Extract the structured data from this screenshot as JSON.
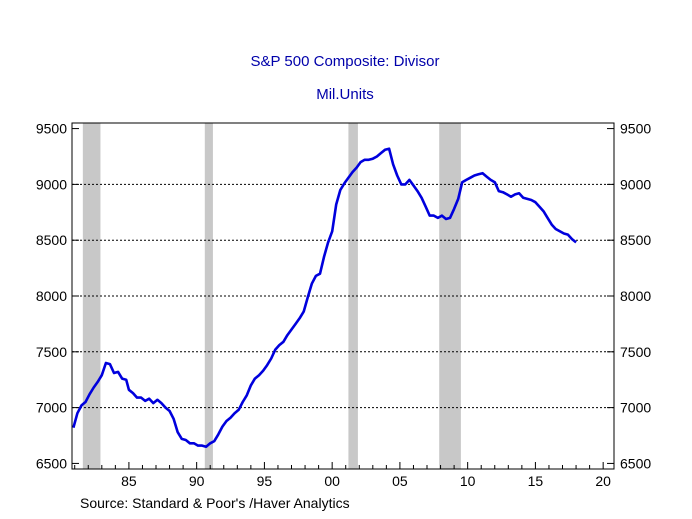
{
  "chart_data": {
    "type": "line",
    "title": "S&P 500 Composite: Divisor",
    "subtitle": "Mil.Units",
    "source": "Source:  Standard & Poor's /Haver Analytics",
    "xlim": [
      1980.8,
      2020.8
    ],
    "ylim": [
      6450,
      9550
    ],
    "x_ticks": [
      {
        "value": 1985,
        "label": "85"
      },
      {
        "value": 1990,
        "label": "90"
      },
      {
        "value": 1995,
        "label": "95"
      },
      {
        "value": 2000,
        "label": "00"
      },
      {
        "value": 2005,
        "label": "05"
      },
      {
        "value": 2010,
        "label": "10"
      },
      {
        "value": 2015,
        "label": "15"
      },
      {
        "value": 2020,
        "label": "20"
      }
    ],
    "y_ticks": [
      6500,
      7000,
      7500,
      8000,
      8500,
      9000,
      9500
    ],
    "y_tick_labels": [
      "6500",
      "7000",
      "7500",
      "8000",
      "8500",
      "9000",
      "9500"
    ],
    "gridlines": [
      7000,
      7500,
      8000,
      8500,
      9000
    ],
    "recessions": [
      [
        1981.6,
        1982.9
      ],
      [
        1990.6,
        1991.2
      ],
      [
        2001.2,
        2001.9
      ],
      [
        2007.9,
        2009.5
      ]
    ],
    "colors": {
      "line": "#0000dd",
      "recession": "#c8c8c8",
      "title": "#0000aa",
      "grid": "#000000"
    },
    "series": [
      {
        "x": [
          1980.9,
          1981.2,
          1981.5,
          1981.8,
          1982.1,
          1982.4,
          1982.7,
          1983.0,
          1983.3,
          1983.6,
          1983.9,
          1984.2,
          1984.5,
          1984.8,
          1985.0,
          1985.3,
          1985.6,
          1985.9,
          1986.2,
          1986.5,
          1986.8,
          1987.1,
          1987.4,
          1987.7,
          1988.0,
          1988.3,
          1988.6,
          1988.9,
          1989.2,
          1989.5,
          1989.8,
          1990.1,
          1990.4,
          1990.7,
          1991.0,
          1991.3,
          1991.6,
          1991.9,
          1992.2,
          1992.5,
          1992.8,
          1993.1,
          1993.4,
          1993.7,
          1994.0,
          1994.3,
          1994.6,
          1994.9,
          1995.2,
          1995.5,
          1995.8,
          1996.1,
          1996.4,
          1996.7,
          1997.0,
          1997.3,
          1997.6,
          1997.9,
          1998.2,
          1998.5,
          1998.8,
          1999.1,
          1999.4,
          1999.7,
          2000.0,
          2000.3,
          2000.6,
          2000.9,
          2001.2,
          2001.5,
          2001.8,
          2002.1,
          2002.4,
          2002.7,
          2003.0,
          2003.3,
          2003.6,
          2003.9,
          2004.2,
          2004.5,
          2004.8,
          2005.1,
          2005.4,
          2005.7,
          2006.0,
          2006.3,
          2006.6,
          2006.9,
          2007.2,
          2007.5,
          2007.8,
          2008.1,
          2008.4,
          2008.7,
          2009.0,
          2009.3,
          2009.6,
          2009.9,
          2010.2,
          2010.5,
          2010.8,
          2011.1,
          2011.4,
          2011.7,
          2012.0,
          2012.3,
          2012.6,
          2012.9,
          2013.2,
          2013.5,
          2013.8,
          2014.1,
          2014.4,
          2014.7,
          2015.0,
          2015.3,
          2015.6,
          2015.9,
          2016.2,
          2016.5,
          2016.8,
          2017.1,
          2017.4,
          2017.7,
          2018.0
        ],
        "y": [
          6820,
          6950,
          7020,
          7050,
          7120,
          7180,
          7230,
          7290,
          7400,
          7390,
          7310,
          7320,
          7260,
          7250,
          7160,
          7130,
          7090,
          7090,
          7060,
          7080,
          7040,
          7070,
          7040,
          7000,
          6970,
          6900,
          6780,
          6720,
          6710,
          6680,
          6680,
          6660,
          6660,
          6650,
          6680,
          6700,
          6760,
          6830,
          6880,
          6910,
          6950,
          6980,
          7050,
          7110,
          7200,
          7260,
          7290,
          7330,
          7380,
          7440,
          7520,
          7560,
          7590,
          7650,
          7700,
          7750,
          7800,
          7860,
          7990,
          8110,
          8180,
          8200,
          8350,
          8480,
          8580,
          8820,
          8950,
          9010,
          9060,
          9110,
          9150,
          9200,
          9220,
          9220,
          9230,
          9250,
          9280,
          9310,
          9320,
          9180,
          9080,
          9000,
          9000,
          9040,
          8990,
          8940,
          8880,
          8800,
          8720,
          8720,
          8700,
          8720,
          8690,
          8700,
          8780,
          8870,
          9020,
          9040,
          9060,
          9080,
          9090,
          9100,
          9070,
          9040,
          9020,
          8940,
          8930,
          8910,
          8890,
          8910,
          8920,
          8880,
          8870,
          8860,
          8840,
          8800,
          8760,
          8700,
          8640,
          8600,
          8580,
          8560,
          8550,
          8510,
          8480
        ]
      }
    ]
  }
}
